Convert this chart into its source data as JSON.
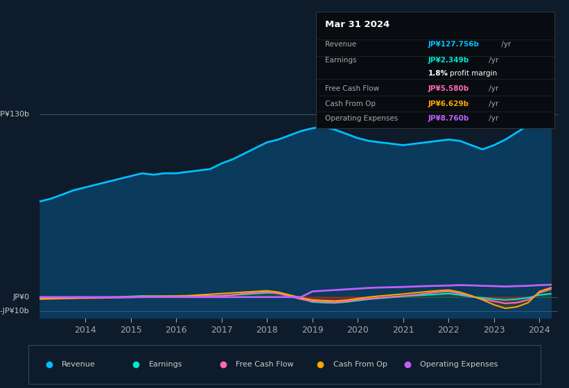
{
  "bg_color": "#0d1b2a",
  "plot_bg_color": "#0d1b2a",
  "title": "Mar 31 2024",
  "tooltip": {
    "Revenue": "JP¥127.756b /yr",
    "Earnings": "JP¥2.349b /yr",
    "profit_margin": "1.8% profit margin",
    "Free Cash Flow": "JP¥5.580b /yr",
    "Cash From Op": "JP¥6.629b /yr",
    "Operating Expenses": "JP¥8.760b /yr"
  },
  "tooltip_colors": {
    "Revenue": "#00bfff",
    "Earnings": "#00e5cc",
    "Free Cash Flow": "#ff69b4",
    "Cash From Op": "#ffa500",
    "Operating Expenses": "#bf5fff"
  },
  "ylabel_130": "JP¥130b",
  "ylabel_0": "JP¥0",
  "ylabel_neg10": "-JP¥10b",
  "x_ticks": [
    2014,
    2015,
    2016,
    2017,
    2018,
    2019,
    2020,
    2021,
    2022,
    2023,
    2024
  ],
  "ylim": [
    -15,
    145
  ],
  "revenue_color": "#00bfff",
  "earnings_color": "#00e5cc",
  "fcf_color": "#ff69b4",
  "cashop_color": "#ffa500",
  "opex_color": "#bf5fff",
  "revenue_fill_color": "#0a3a5c",
  "years": [
    2013.0,
    2013.25,
    2013.5,
    2013.75,
    2014.0,
    2014.25,
    2014.5,
    2014.75,
    2015.0,
    2015.25,
    2015.5,
    2015.75,
    2016.0,
    2016.25,
    2016.5,
    2016.75,
    2017.0,
    2017.25,
    2017.5,
    2017.75,
    2018.0,
    2018.25,
    2018.5,
    2018.75,
    2019.0,
    2019.25,
    2019.5,
    2019.75,
    2020.0,
    2020.25,
    2020.5,
    2020.75,
    2021.0,
    2021.25,
    2021.5,
    2021.75,
    2022.0,
    2022.25,
    2022.5,
    2022.75,
    2023.0,
    2023.25,
    2023.5,
    2023.75,
    2024.0,
    2024.25
  ],
  "revenue": [
    68,
    70,
    73,
    76,
    78,
    80,
    82,
    84,
    86,
    88,
    87,
    88,
    88,
    89,
    90,
    91,
    95,
    98,
    102,
    106,
    110,
    112,
    115,
    118,
    120,
    121,
    119,
    116,
    113,
    111,
    110,
    109,
    108,
    109,
    110,
    111,
    112,
    111,
    108,
    105,
    108,
    112,
    117,
    122,
    127,
    127.756
  ],
  "earnings": [
    -1,
    -0.9,
    -0.8,
    -0.7,
    -0.5,
    -0.3,
    -0.1,
    0.1,
    0.5,
    0.8,
    0.7,
    0.6,
    0.5,
    0.7,
    0.8,
    0.9,
    1.0,
    1.5,
    2.0,
    2.5,
    3.0,
    2.8,
    1.0,
    -1.0,
    -3.5,
    -4.0,
    -4.2,
    -3.5,
    -2.5,
    -1.5,
    -0.8,
    -0.2,
    0.5,
    1.0,
    1.5,
    2.0,
    2.5,
    1.5,
    0.2,
    -0.5,
    -1.5,
    -2.0,
    -1.5,
    -0.5,
    1.5,
    2.349
  ],
  "fcf": [
    -1.5,
    -1.3,
    -1.1,
    -0.9,
    -0.8,
    -0.7,
    -0.6,
    -0.5,
    -0.3,
    -0.1,
    0.0,
    0.1,
    0.3,
    0.5,
    0.7,
    0.8,
    0.9,
    1.5,
    2.5,
    3.0,
    3.5,
    2.5,
    0.5,
    -1.5,
    -3.0,
    -3.5,
    -3.8,
    -3.2,
    -2.0,
    -1.2,
    -0.5,
    0.2,
    0.8,
    1.5,
    2.5,
    3.5,
    4.0,
    2.5,
    0.5,
    -1.5,
    -3.0,
    -4.5,
    -4.0,
    -2.0,
    3.0,
    5.58
  ],
  "cashop": [
    -1.2,
    -1.0,
    -0.8,
    -0.6,
    -0.5,
    -0.3,
    -0.2,
    -0.0,
    0.2,
    0.5,
    0.6,
    0.7,
    0.8,
    1.0,
    1.5,
    2.0,
    2.5,
    3.0,
    3.5,
    4.0,
    4.5,
    3.5,
    1.5,
    -0.5,
    -2.0,
    -2.5,
    -2.8,
    -2.2,
    -1.0,
    0.0,
    0.8,
    1.5,
    2.2,
    3.0,
    3.8,
    4.5,
    5.0,
    3.5,
    1.0,
    -2.0,
    -5.5,
    -8.0,
    -7.0,
    -4.0,
    4.0,
    6.629
  ],
  "opex": [
    0,
    0,
    0,
    0,
    0,
    0,
    0,
    0,
    0,
    0,
    0,
    0,
    0,
    0,
    0,
    0,
    0,
    0,
    0,
    0,
    0,
    0,
    0,
    0,
    4.0,
    4.5,
    5.0,
    5.5,
    6.0,
    6.5,
    6.8,
    7.0,
    7.2,
    7.5,
    7.8,
    8.0,
    8.2,
    8.5,
    8.3,
    8.0,
    7.8,
    7.5,
    7.8,
    8.0,
    8.5,
    8.76
  ]
}
